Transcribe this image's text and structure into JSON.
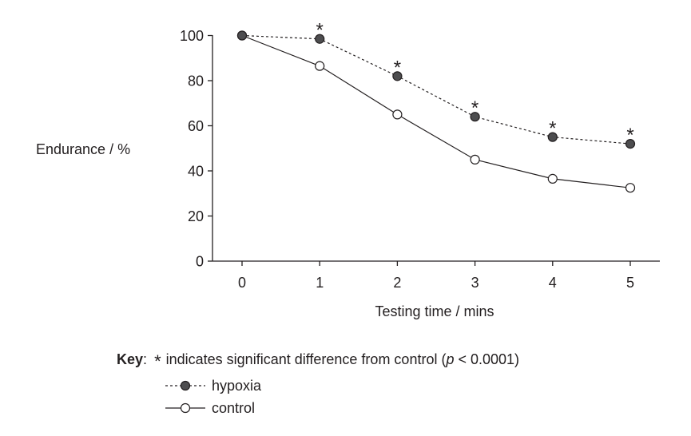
{
  "chart_data": {
    "type": "line",
    "x": [
      0,
      1,
      2,
      3,
      4,
      5
    ],
    "series": [
      {
        "name": "hypoxia",
        "values": [
          100,
          98.5,
          82,
          64,
          55,
          52
        ],
        "style": "dashed",
        "marker": "filled-circle",
        "significant": [
          false,
          true,
          true,
          true,
          true,
          true
        ]
      },
      {
        "name": "control",
        "values": [
          100,
          86.5,
          65,
          45,
          36.5,
          32.5
        ],
        "style": "solid",
        "marker": "open-circle",
        "significant": [
          false,
          false,
          false,
          false,
          false,
          false
        ]
      }
    ],
    "xlabel": "Testing time / mins",
    "ylabel": "Endurance / %",
    "xlim": [
      0,
      5
    ],
    "ylim": [
      0,
      100
    ],
    "xticks": [
      0,
      1,
      2,
      3,
      4,
      5
    ],
    "yticks": [
      0,
      20,
      40,
      60,
      80,
      100
    ],
    "significance_marker": "*",
    "grid": false,
    "legend_position": "bottom"
  },
  "key": {
    "title": "Key",
    "colon": ":",
    "star_symbol": "*",
    "note_text": "indicates significant difference from control (",
    "p_symbol": "p",
    "p_value": " < 0.0001)",
    "hypoxia_label": "hypoxia",
    "control_label": "control"
  },
  "colors": {
    "ink": "#231f20",
    "filled_marker": "#4d4d4f",
    "background": "#ffffff"
  }
}
